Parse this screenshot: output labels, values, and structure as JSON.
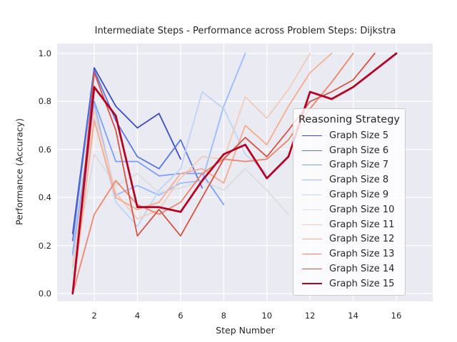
{
  "header": {
    "title": "Intermediate Steps - Performance across Problem Steps: Dijkstra"
  },
  "axes": {
    "xlabel": "Step Number",
    "ylabel": "Performance (Accuracy)",
    "x_tick_labels": [
      "2",
      "4",
      "6",
      "8",
      "10",
      "12",
      "14",
      "16"
    ],
    "y_tick_labels": [
      "0.0",
      "0.2",
      "0.4",
      "0.6",
      "0.8",
      "1.0"
    ]
  },
  "legend": {
    "title": "Reasoning Strategy"
  },
  "colors": {
    "figure_background": "#ffffff",
    "plot_background": "#eaeaf2",
    "grid": "#ffffff",
    "text": "#262626",
    "legend_border": "#cccccc"
  },
  "chart_data": {
    "type": "line",
    "title": "Intermediate Steps - Performance across Problem Steps: Dijkstra",
    "xlabel": "Step Number",
    "ylabel": "Performance (Accuracy)",
    "x_ticks": [
      2,
      4,
      6,
      8,
      10,
      12,
      14,
      16
    ],
    "y_ticks": [
      0.0,
      0.2,
      0.4,
      0.6,
      0.8,
      1.0
    ],
    "xlim": [
      0.3,
      17.7
    ],
    "ylim": [
      -0.033,
      1.042
    ],
    "grid": true,
    "legend_title": "Reasoning Strategy",
    "legend_position": "center right",
    "series": [
      {
        "name": "Graph Size 5",
        "color": "#3b4cc0",
        "linewidth": 1.8,
        "x": [
          1,
          2,
          3,
          4,
          5,
          6
        ],
        "values": [
          0.25,
          0.94,
          0.78,
          0.69,
          0.75,
          0.56
        ]
      },
      {
        "name": "Graph Size 6",
        "color": "#5977e3",
        "linewidth": 1.8,
        "x": [
          1,
          2,
          3,
          4,
          5,
          6,
          7
        ],
        "values": [
          0.22,
          0.93,
          0.72,
          0.57,
          0.52,
          0.64,
          0.44
        ]
      },
      {
        "name": "Graph Size 7",
        "color": "#7b9ff9",
        "linewidth": 1.8,
        "x": [
          1,
          2,
          3,
          4,
          5,
          6,
          7,
          8
        ],
        "values": [
          0.17,
          0.8,
          0.55,
          0.55,
          0.49,
          0.5,
          0.5,
          0.37
        ]
      },
      {
        "name": "Graph Size 8",
        "color": "#9abbff",
        "linewidth": 1.8,
        "x": [
          1,
          2,
          3,
          4,
          5,
          6,
          7,
          8,
          9
        ],
        "values": [
          0.16,
          0.79,
          0.41,
          0.45,
          0.41,
          0.46,
          0.47,
          0.78,
          1.0
        ]
      },
      {
        "name": "Graph Size 9",
        "color": "#c0d4f5",
        "linewidth": 1.8,
        "x": [
          1,
          2,
          3,
          4,
          5,
          6,
          7,
          8,
          9,
          10
        ],
        "values": [
          0.11,
          0.73,
          0.38,
          0.28,
          0.43,
          0.52,
          0.84,
          0.77,
          0.58,
          0.5
        ]
      },
      {
        "name": "Graph Size 10",
        "color": "#dddcdc",
        "linewidth": 1.8,
        "x": [
          1,
          2,
          3,
          4,
          5,
          6,
          7,
          8,
          9,
          10,
          11
        ],
        "values": [
          0.08,
          0.58,
          0.45,
          0.5,
          0.42,
          0.44,
          0.47,
          0.43,
          0.52,
          0.43,
          0.33
        ]
      },
      {
        "name": "Graph Size 11",
        "color": "#f2cbb7",
        "linewidth": 1.8,
        "x": [
          1,
          2,
          3,
          4,
          5,
          6,
          7,
          8,
          9,
          10,
          11,
          12
        ],
        "values": [
          0.12,
          0.76,
          0.42,
          0.31,
          0.35,
          0.48,
          0.57,
          0.56,
          0.82,
          0.73,
          0.85,
          1.0
        ]
      },
      {
        "name": "Graph Size 12",
        "color": "#f7ac8e",
        "linewidth": 1.8,
        "x": [
          1,
          2,
          3,
          4,
          5,
          6,
          7,
          8,
          9,
          10,
          11,
          12,
          13
        ],
        "values": [
          0.0,
          0.72,
          0.4,
          0.35,
          0.38,
          0.5,
          0.52,
          0.46,
          0.7,
          0.62,
          0.78,
          0.92,
          1.0
        ]
      },
      {
        "name": "Graph Size 13",
        "color": "#ee8468",
        "linewidth": 1.8,
        "x": [
          1,
          2,
          3,
          4,
          5,
          6,
          7,
          8,
          9,
          10,
          11,
          12,
          13,
          14
        ],
        "values": [
          0.0,
          0.33,
          0.47,
          0.37,
          0.33,
          0.38,
          0.5,
          0.56,
          0.55,
          0.56,
          0.64,
          0.77,
          0.88,
          1.0
        ]
      },
      {
        "name": "Graph Size 14",
        "color": "#d65244",
        "linewidth": 1.8,
        "x": [
          1,
          2,
          3,
          4,
          5,
          6,
          7,
          8,
          9,
          10,
          11,
          12,
          13,
          14,
          15
        ],
        "values": [
          0.0,
          0.92,
          0.68,
          0.24,
          0.35,
          0.24,
          0.4,
          0.56,
          0.65,
          0.57,
          0.68,
          0.8,
          0.84,
          0.89,
          1.0
        ]
      },
      {
        "name": "Graph Size 15",
        "color": "#b40426",
        "linewidth": 2.8,
        "x": [
          1,
          2,
          3,
          4,
          5,
          6,
          7,
          8,
          9,
          10,
          11,
          12,
          13,
          14,
          15,
          16
        ],
        "values": [
          0.0,
          0.86,
          0.74,
          0.36,
          0.36,
          0.34,
          0.47,
          0.58,
          0.62,
          0.48,
          0.57,
          0.84,
          0.81,
          0.86,
          0.93,
          1.0
        ]
      }
    ]
  }
}
